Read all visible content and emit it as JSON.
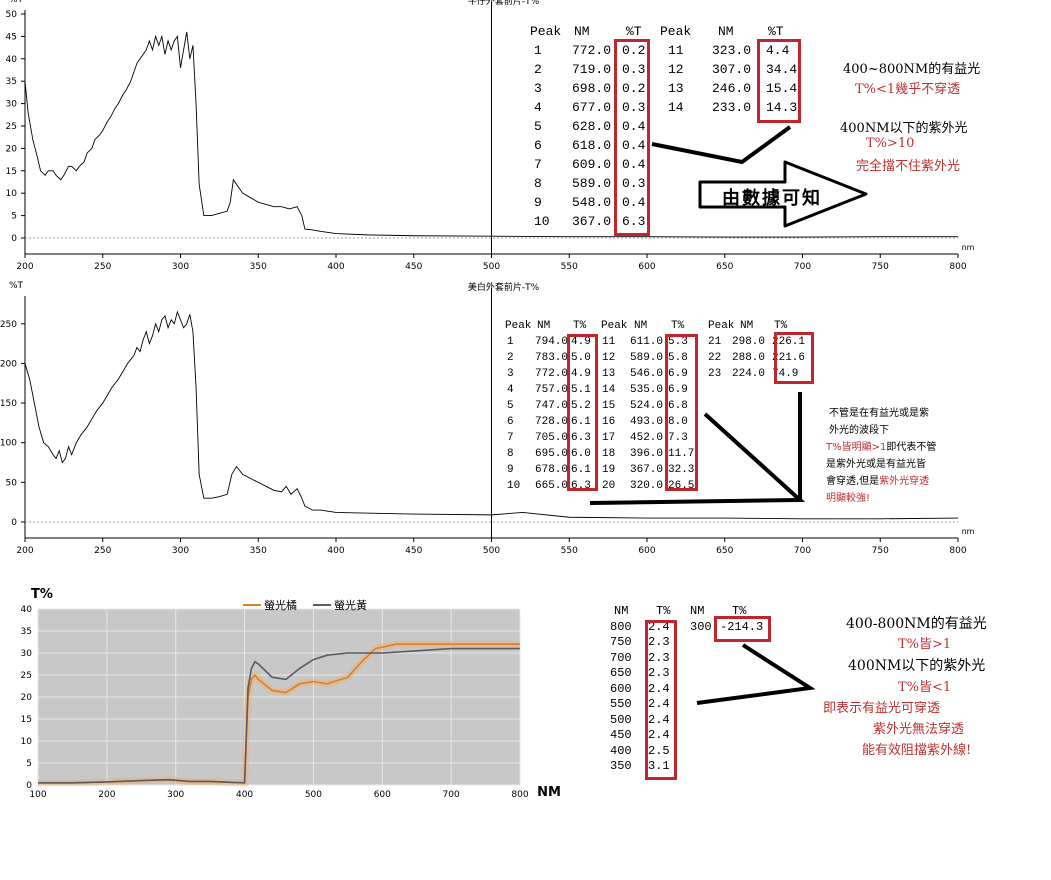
{
  "chart_data": [
    {
      "type": "line",
      "title": "牛仔外套前片-T%",
      "ylabel": "%T",
      "xunit": "nm",
      "xlim": [
        200,
        800
      ],
      "ylim": [
        0,
        50
      ],
      "xticks": [
        200,
        250,
        300,
        350,
        400,
        450,
        500,
        550,
        600,
        650,
        700,
        750,
        800
      ],
      "yticks": [
        0,
        5,
        10,
        15,
        20,
        25,
        30,
        35,
        40,
        45,
        50
      ],
      "marker_x": 500,
      "series": [
        {
          "x": [
            200,
            202,
            205,
            208,
            210,
            213,
            215,
            218,
            220,
            223,
            225,
            228,
            230,
            233,
            235,
            238,
            240,
            243,
            245,
            248,
            250,
            253,
            255,
            258,
            260,
            263,
            265,
            268,
            270,
            272,
            274,
            276,
            278,
            280,
            282,
            284,
            286,
            288,
            290,
            292,
            294,
            296,
            298,
            300,
            302,
            304,
            306,
            308,
            310,
            312,
            315,
            320,
            325,
            330,
            332,
            334,
            336,
            340,
            345,
            350,
            355,
            360,
            365,
            370,
            375,
            378,
            380,
            385,
            390,
            400,
            420,
            450,
            500,
            550,
            600,
            650,
            700,
            750,
            800
          ],
          "y": [
            35,
            28,
            22,
            18,
            15,
            14,
            15,
            15,
            14,
            13,
            14,
            16,
            16,
            15,
            16,
            17,
            19,
            20,
            22,
            23,
            24,
            26,
            27,
            29,
            30,
            32,
            33,
            35,
            37,
            39,
            40,
            41,
            42,
            44,
            42,
            45,
            43,
            45,
            41,
            44,
            42,
            44,
            45,
            38,
            42,
            46,
            40,
            43,
            30,
            12,
            5,
            5,
            5.5,
            6,
            8,
            13,
            12,
            10,
            9,
            8,
            7.5,
            7,
            7,
            6.5,
            7,
            5,
            2,
            1.8,
            1.5,
            1,
            0.7,
            0.5,
            0.4,
            0.3,
            0.3,
            0.2,
            0.2,
            0.3,
            0.3
          ]
        }
      ]
    },
    {
      "type": "line",
      "title": "美白外套前片-T%",
      "ylabel": "%T",
      "xunit": "nm",
      "xlim": [
        200,
        800
      ],
      "ylim": [
        0,
        280
      ],
      "xticks": [
        200,
        250,
        300,
        350,
        400,
        450,
        500,
        550,
        600,
        650,
        700,
        750,
        800
      ],
      "yticks": [
        0,
        50,
        100,
        150,
        200,
        250
      ],
      "marker_x": 500,
      "series": [
        {
          "x": [
            200,
            203,
            206,
            209,
            212,
            215,
            218,
            220,
            222,
            224,
            226,
            228,
            230,
            233,
            236,
            240,
            243,
            246,
            250,
            253,
            256,
            260,
            263,
            266,
            270,
            272,
            274,
            276,
            278,
            280,
            282,
            284,
            286,
            288,
            290,
            292,
            294,
            296,
            298,
            300,
            302,
            304,
            306,
            308,
            310,
            312,
            315,
            320,
            325,
            330,
            333,
            336,
            340,
            345,
            350,
            355,
            360,
            365,
            368,
            371,
            375,
            378,
            380,
            385,
            390,
            400,
            450,
            500,
            520,
            550,
            600,
            650,
            700,
            750,
            800
          ],
          "y": [
            200,
            180,
            150,
            120,
            100,
            95,
            85,
            80,
            90,
            75,
            80,
            95,
            85,
            100,
            110,
            120,
            130,
            140,
            150,
            160,
            170,
            180,
            190,
            200,
            210,
            220,
            215,
            230,
            240,
            225,
            235,
            250,
            240,
            255,
            260,
            245,
            255,
            250,
            265,
            255,
            245,
            250,
            262,
            240,
            170,
            60,
            30,
            30,
            32,
            35,
            60,
            70,
            60,
            55,
            50,
            45,
            40,
            38,
            45,
            35,
            42,
            30,
            20,
            15,
            15,
            12,
            10,
            9,
            12,
            6,
            5,
            5,
            4,
            4,
            5
          ]
        }
      ]
    },
    {
      "type": "line",
      "title": "",
      "ylabel": "T%",
      "xlabel": "NM",
      "xlim": [
        100,
        800
      ],
      "ylim": [
        0,
        40
      ],
      "xticks": [
        100,
        200,
        300,
        400,
        500,
        600,
        700,
        800
      ],
      "yticks": [
        0,
        5,
        10,
        15,
        20,
        25,
        30,
        35,
        40
      ],
      "legend": "top-center",
      "colors": {
        "panel": "#c8c8c8",
        "grid": "#e8e8e8"
      },
      "series": [
        {
          "name": "螢光橘",
          "color": "#d9822b",
          "x": [
            100,
            150,
            200,
            250,
            290,
            320,
            350,
            380,
            400,
            405,
            410,
            415,
            420,
            440,
            460,
            480,
            500,
            520,
            550,
            570,
            590,
            620,
            700,
            800
          ],
          "y": [
            0.5,
            0.5,
            0.7,
            1,
            1.2,
            0.8,
            0.8,
            0.6,
            0.5,
            20,
            24,
            25,
            24,
            21.5,
            21,
            23,
            23.5,
            23,
            24.5,
            28,
            31,
            32,
            32,
            32
          ]
        },
        {
          "name": "螢光黃",
          "color": "#5b5b63",
          "x": [
            100,
            150,
            200,
            250,
            290,
            320,
            350,
            380,
            400,
            405,
            410,
            415,
            420,
            440,
            460,
            480,
            500,
            520,
            550,
            600,
            650,
            700,
            800
          ],
          "y": [
            0.5,
            0.5,
            0.7,
            1,
            1.2,
            0.8,
            0.8,
            0.6,
            0.5,
            22,
            26.5,
            28,
            27.5,
            24.5,
            24,
            26.5,
            28.5,
            29.5,
            30,
            30,
            30.5,
            31,
            31
          ]
        }
      ]
    }
  ],
  "table1": {
    "headers": [
      "Peak",
      "NM",
      "%T",
      "Peak",
      "NM",
      "%T"
    ],
    "rows": [
      [
        "1",
        "772.0",
        "0.2",
        "11",
        "323.0",
        "4.4"
      ],
      [
        "2",
        "719.0",
        "0.3",
        "12",
        "307.0",
        "34.4"
      ],
      [
        "3",
        "698.0",
        "0.2",
        "13",
        "246.0",
        "15.4"
      ],
      [
        "4",
        "677.0",
        "0.3",
        "14",
        "233.0",
        "14.3"
      ],
      [
        "5",
        "628.0",
        "0.4",
        "",
        "",
        ""
      ],
      [
        "6",
        "618.0",
        "0.4",
        "",
        "",
        ""
      ],
      [
        "7",
        "609.0",
        "0.4",
        "",
        "",
        ""
      ],
      [
        "8",
        "589.0",
        "0.3",
        "",
        "",
        ""
      ],
      [
        "9",
        "548.0",
        "0.4",
        "",
        "",
        ""
      ],
      [
        "10",
        "367.0",
        "6.3",
        "",
        "",
        ""
      ]
    ]
  },
  "table2": {
    "headers": [
      "Peak",
      "NM",
      "T%",
      "Peak",
      "NM",
      "T%",
      "Peak",
      "NM",
      "T%"
    ],
    "rows": [
      [
        "1",
        "794.0",
        "4.9",
        "11",
        "611.0",
        "5.3",
        "21",
        "298.0",
        "226.1"
      ],
      [
        "2",
        "783.0",
        "5.0",
        "12",
        "589.0",
        "5.8",
        "22",
        "288.0",
        "221.6"
      ],
      [
        "3",
        "772.0",
        "4.9",
        "13",
        "546.0",
        "6.9",
        "23",
        "224.0",
        "74.9"
      ],
      [
        "4",
        "757.0",
        "5.1",
        "14",
        "535.0",
        "6.9",
        "",
        "",
        ""
      ],
      [
        "5",
        "747.0",
        "5.2",
        "15",
        "524.0",
        "6.8",
        "",
        "",
        ""
      ],
      [
        "6",
        "728.0",
        "6.1",
        "16",
        "493.0",
        "8.0",
        "",
        "",
        ""
      ],
      [
        "7",
        "705.0",
        "6.3",
        "17",
        "452.0",
        "7.3",
        "",
        "",
        ""
      ],
      [
        "8",
        "695.0",
        "6.0",
        "18",
        "396.0",
        "11.7",
        "",
        "",
        ""
      ],
      [
        "9",
        "678.0",
        "6.1",
        "19",
        "367.0",
        "32.3",
        "",
        "",
        ""
      ],
      [
        "10",
        "665.0",
        "6.3",
        "20",
        "320.0",
        "26.5",
        "",
        "",
        ""
      ]
    ]
  },
  "table3": {
    "headers": [
      "NM",
      "T%",
      "NM",
      "T%"
    ],
    "rows": [
      [
        "800",
        "2.4",
        "300",
        "-214.3"
      ],
      [
        "750",
        "2.3",
        "",
        ""
      ],
      [
        "700",
        "2.3",
        "",
        ""
      ],
      [
        "650",
        "2.3",
        "",
        ""
      ],
      [
        "600",
        "2.4",
        "",
        ""
      ],
      [
        "550",
        "2.4",
        "",
        ""
      ],
      [
        "500",
        "2.4",
        "",
        ""
      ],
      [
        "450",
        "2.4",
        "",
        ""
      ],
      [
        "400",
        "2.5",
        "",
        ""
      ],
      [
        "350",
        "3.1",
        "",
        ""
      ]
    ]
  },
  "notes1": {
    "line1": "400~800NM的有益光",
    "line2": "T%<1幾乎不穿透",
    "line3": "400NM以下的紫外光",
    "line4": "T%>10",
    "line5": "完全擋不住紫外光",
    "arrow_text": "由數據可知"
  },
  "notes2": {
    "line1": "不管是在有益光或是紫",
    "line2": "外光的波段下",
    "line3a": "T%皆明顯>1",
    "line3b": "即代表不管",
    "line4": "是紫外光或是有益光皆",
    "line5a": "會穿透,但是",
    "line5b": "紫外光穿透",
    "line6": "明顯較強!"
  },
  "notes3": {
    "line1": "400-800NM的有益光",
    "line2": "T%皆>1",
    "line3": "400NM以下的紫外光",
    "line4": "T%皆<1",
    "line5": "即表示有益光可穿透",
    "line6": "紫外光無法穿透",
    "line7": "能有效阻擋紫外線!"
  },
  "colors": {
    "red": "#c0262d",
    "note_red": "#c03030"
  }
}
